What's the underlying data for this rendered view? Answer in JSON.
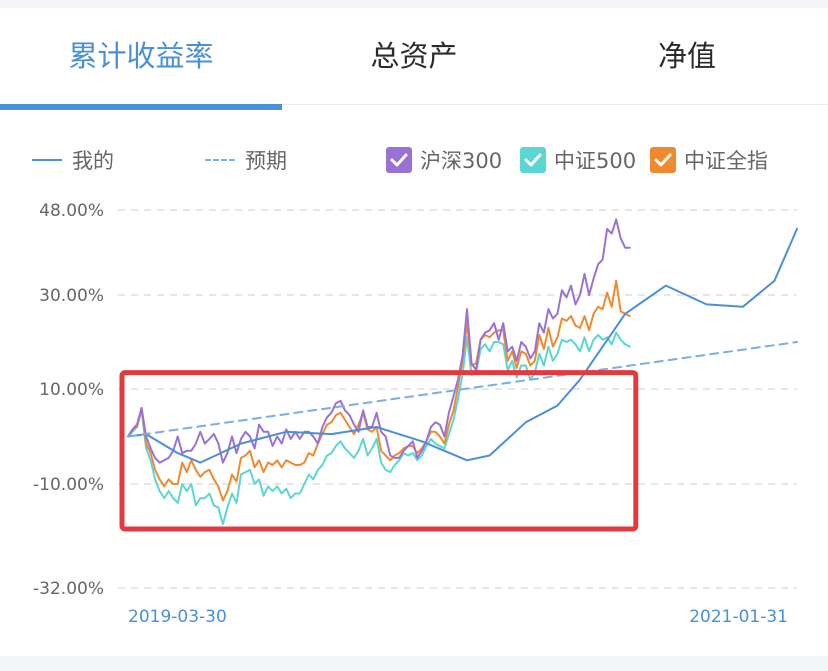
{
  "tabs": [
    {
      "label": "累计收益率",
      "active": true
    },
    {
      "label": "总资产",
      "active": false
    },
    {
      "label": "净值",
      "active": false
    }
  ],
  "legend": {
    "mine": "我的",
    "expected": "预期",
    "hs300": "沪深300",
    "zz500": "中证500",
    "zzqz": "中证全指"
  },
  "colors": {
    "accent": "#4a90d9",
    "mine": "#4a90d9",
    "expected": "#7aaee6",
    "hs300": "#9a72d6",
    "zz500": "#5bd6d2",
    "zzqz": "#f08a2f",
    "highlight_box": "#e23b3f"
  },
  "chart_data": {
    "type": "line",
    "x_start": "2019-03-30",
    "x_end": "2021-01-31",
    "x_tick_labels": [
      "2019-03-30",
      "2021-01-31"
    ],
    "y_tick_labels": [
      "48.00%",
      "30.00%",
      "10.00%",
      "-10.00%",
      "-32.00%"
    ],
    "y_ticks": [
      48,
      30,
      10,
      -10,
      -32
    ],
    "ylim": [
      -32,
      48
    ],
    "grid": true,
    "legend_position": "top",
    "annotation": "red rectangle highlighting 2019-03-30 to approx. 2020-03",
    "x_index_range": [
      0,
      111
    ],
    "series": [
      {
        "name": "我的",
        "style": "solid",
        "x": [
          0,
          4,
          11,
          16,
          25,
          35,
          45,
          55,
          65,
          75,
          80,
          88,
          95,
          100,
          110,
          119,
          128,
          136,
          143,
          148
        ],
        "values": [
          0.0,
          0.5,
          -3.5,
          -5.5,
          -1.5,
          1.0,
          0.5,
          2.0,
          -1.0,
          -5.0,
          -4.0,
          3.0,
          6.5,
          12.0,
          26.0,
          32.0,
          28.0,
          27.5,
          33.0,
          44.0
        ]
      },
      {
        "name": "预期",
        "style": "dashed",
        "x": [
          0,
          148
        ],
        "values": [
          0.0,
          20.0
        ]
      },
      {
        "name": "沪深300",
        "values": [
          0.0,
          1.5,
          2.5,
          6.0,
          0.0,
          -2.5,
          -4.5,
          -5.5,
          -5.0,
          -4.5,
          -3.0,
          0.0,
          -3.5,
          -3.0,
          -3.0,
          -1.5,
          1.0,
          -1.5,
          -0.5,
          0.5,
          -1.5,
          -5.5,
          -3.5,
          0.0,
          -3.5,
          -0.5,
          1.0,
          0.0,
          -2.5,
          2.5,
          1.0,
          1.0,
          -2.0,
          0.0,
          -1.5,
          1.5,
          -0.5,
          1.0,
          -0.5,
          1.0,
          1.0,
          0.0,
          -1.5,
          2.0,
          4.0,
          5.0,
          7.0,
          7.5,
          5.5,
          4.5,
          2.5,
          1.0,
          5.5,
          2.0,
          2.0,
          5.0,
          1.0,
          0.0,
          -4.0,
          -4.5,
          -4.5,
          -3.0,
          -2.0,
          -1.0,
          -4.5,
          -3.0,
          -1.0,
          2.0,
          3.0,
          2.5,
          0.0,
          5.0,
          8.5,
          12.0,
          17.0,
          27.0,
          15.5,
          14.0,
          20.5,
          22.0,
          22.5,
          24.0,
          20.5,
          24.0,
          18.0,
          19.0,
          16.0,
          20.0,
          19.0,
          16.5,
          18.0,
          24.0,
          22.0,
          27.0,
          25.0,
          26.0,
          31.0,
          29.5,
          32.0,
          28.0,
          30.0,
          34.5,
          30.0,
          33.5,
          36.5,
          37.5,
          44.0,
          43.0,
          46.0,
          42.0,
          40.0,
          40.0
        ]
      },
      {
        "name": "中证500",
        "values": [
          0.0,
          1.0,
          2.0,
          5.5,
          -2.5,
          -5.0,
          -9.0,
          -11.5,
          -13.0,
          -11.5,
          -13.0,
          -14.0,
          -10.0,
          -11.5,
          -10.0,
          -14.5,
          -13.0,
          -13.0,
          -12.0,
          -14.5,
          -15.0,
          -18.5,
          -15.0,
          -12.0,
          -14.0,
          -8.0,
          -7.5,
          -7.0,
          -10.0,
          -9.0,
          -12.5,
          -10.5,
          -11.5,
          -10.5,
          -12.0,
          -11.0,
          -13.0,
          -12.0,
          -12.0,
          -10.0,
          -8.0,
          -9.0,
          -7.0,
          -6.0,
          -4.0,
          -3.5,
          -2.0,
          -1.0,
          -2.5,
          -3.5,
          -4.5,
          -3.0,
          -0.5,
          -4.0,
          -2.5,
          -0.5,
          -5.5,
          -7.0,
          -7.5,
          -6.0,
          -5.0,
          -3.5,
          -4.0,
          -3.5,
          -5.0,
          -4.0,
          -2.0,
          -0.5,
          -1.5,
          -2.0,
          -2.5,
          0.5,
          3.5,
          8.0,
          13.0,
          21.0,
          13.0,
          13.5,
          18.5,
          19.5,
          18.0,
          20.0,
          20.0,
          19.5,
          14.0,
          16.0,
          12.5,
          15.0,
          15.0,
          12.0,
          13.5,
          17.5,
          15.0,
          19.0,
          16.0,
          17.5,
          20.5,
          20.0,
          20.5,
          19.5,
          18.0,
          21.0,
          18.0,
          20.5,
          21.5,
          20.5,
          21.0,
          19.5,
          22.0,
          20.5,
          19.5,
          19.0
        ]
      },
      {
        "name": "中证全指",
        "values": [
          0.0,
          1.5,
          2.0,
          6.0,
          -1.5,
          -3.5,
          -7.0,
          -9.0,
          -10.5,
          -9.0,
          -10.0,
          -10.0,
          -5.5,
          -7.5,
          -5.0,
          -7.0,
          -8.5,
          -7.5,
          -7.0,
          -9.0,
          -10.5,
          -13.5,
          -11.5,
          -8.0,
          -9.5,
          -4.5,
          -4.0,
          -3.0,
          -6.5,
          -5.0,
          -7.5,
          -5.5,
          -6.0,
          -5.0,
          -6.5,
          -5.0,
          -5.5,
          -6.0,
          -6.0,
          -5.5,
          -3.5,
          -4.0,
          -1.5,
          0.5,
          2.5,
          3.0,
          4.5,
          5.0,
          3.5,
          2.0,
          0.5,
          2.5,
          5.0,
          1.5,
          1.0,
          2.0,
          -3.0,
          -4.0,
          -5.0,
          -4.0,
          -3.5,
          -2.5,
          -2.0,
          -2.0,
          -3.5,
          -2.5,
          -1.0,
          1.0,
          1.0,
          0.0,
          -1.5,
          2.5,
          5.5,
          10.5,
          16.0,
          24.0,
          15.0,
          15.5,
          20.5,
          21.5,
          21.0,
          22.0,
          22.5,
          22.5,
          16.0,
          18.0,
          14.5,
          18.0,
          17.5,
          15.0,
          16.0,
          21.5,
          18.5,
          23.0,
          19.0,
          21.0,
          25.0,
          24.5,
          25.5,
          23.5,
          23.0,
          25.5,
          22.5,
          26.0,
          27.5,
          27.0,
          30.5,
          27.5,
          33.0,
          26.5,
          26.0,
          25.5
        ]
      }
    ]
  }
}
